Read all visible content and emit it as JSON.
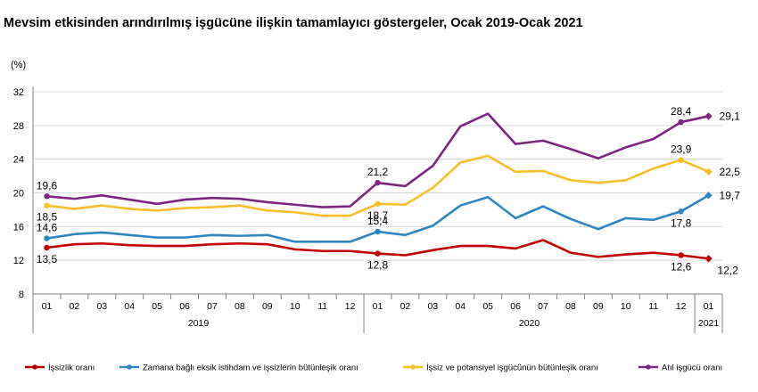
{
  "chart_data": {
    "type": "line",
    "title": "Mevsim etkisinden arındırılmış işgücüne ilişkin tamamlayıcı göstergeler, Ocak 2019-Ocak 2021",
    "ylabel": "(%)",
    "ylim": [
      8,
      32
    ],
    "yticks": [
      8,
      12,
      16,
      20,
      24,
      28,
      32
    ],
    "month_labels": [
      "01",
      "02",
      "03",
      "04",
      "05",
      "06",
      "07",
      "08",
      "09",
      "10",
      "11",
      "12",
      "01",
      "02",
      "03",
      "04",
      "05",
      "06",
      "07",
      "08",
      "09",
      "10",
      "11",
      "12",
      "01"
    ],
    "year_labels": [
      "2019",
      "2020",
      "2021"
    ],
    "series": [
      {
        "name": "İşsizlik oranı",
        "color": "#c00000",
        "values": [
          13.5,
          13.9,
          14.0,
          13.8,
          13.7,
          13.7,
          13.9,
          14.0,
          13.9,
          13.3,
          13.1,
          13.1,
          12.8,
          12.6,
          13.2,
          13.7,
          13.7,
          13.4,
          14.4,
          12.9,
          12.4,
          12.7,
          12.9,
          12.6,
          12.2
        ],
        "labels": [
          {
            "index": 0,
            "text": "13,5",
            "pos": "below"
          },
          {
            "index": 12,
            "text": "12,8",
            "pos": "below"
          },
          {
            "index": 23,
            "text": "12,6",
            "pos": "below"
          },
          {
            "index": 24,
            "text": "12,2",
            "pos": "below-right"
          }
        ]
      },
      {
        "name": "Zamana bağlı eksik istihdam ve işsizlerin bütünleşik oranı",
        "color": "#2e86c1",
        "values": [
          14.6,
          15.1,
          15.3,
          15.0,
          14.7,
          14.7,
          15.0,
          14.9,
          15.0,
          14.2,
          14.2,
          14.2,
          15.4,
          15.0,
          16.1,
          18.5,
          19.5,
          17.0,
          18.4,
          16.9,
          15.7,
          17.0,
          16.8,
          17.8,
          19.7
        ],
        "labels": [
          {
            "index": 0,
            "text": "14,6",
            "pos": "above"
          },
          {
            "index": 12,
            "text": "15,4",
            "pos": "above"
          },
          {
            "index": 23,
            "text": "17,8",
            "pos": "below"
          },
          {
            "index": 24,
            "text": "19,7",
            "pos": "right"
          }
        ]
      },
      {
        "name": "İşsiz ve potansiyel işgücünün bütünleşik oranı",
        "color": "#f5c02a",
        "values": [
          18.5,
          18.1,
          18.5,
          18.1,
          17.9,
          18.2,
          18.3,
          18.5,
          17.9,
          17.7,
          17.3,
          17.3,
          18.7,
          18.6,
          20.6,
          23.6,
          24.4,
          22.5,
          22.6,
          21.5,
          21.2,
          21.5,
          22.9,
          23.9,
          22.5
        ],
        "labels": [
          {
            "index": 0,
            "text": "18,5",
            "pos": "below"
          },
          {
            "index": 12,
            "text": "18,7",
            "pos": "below"
          },
          {
            "index": 23,
            "text": "23,9",
            "pos": "above"
          },
          {
            "index": 24,
            "text": "22,5",
            "pos": "right"
          }
        ]
      },
      {
        "name": "Atıl işgücü oranı",
        "color": "#7b2580",
        "values": [
          19.6,
          19.3,
          19.7,
          19.2,
          18.7,
          19.2,
          19.4,
          19.3,
          18.9,
          18.6,
          18.3,
          18.4,
          21.2,
          20.8,
          23.2,
          27.9,
          29.4,
          25.8,
          26.2,
          25.2,
          24.1,
          25.4,
          26.4,
          28.4,
          29.1
        ],
        "labels": [
          {
            "index": 0,
            "text": "19,6",
            "pos": "above"
          },
          {
            "index": 12,
            "text": "21,2",
            "pos": "above"
          },
          {
            "index": 23,
            "text": "28,4",
            "pos": "above"
          },
          {
            "index": 24,
            "text": "29,1",
            "pos": "right"
          }
        ]
      }
    ],
    "legend_position": "bottom"
  }
}
